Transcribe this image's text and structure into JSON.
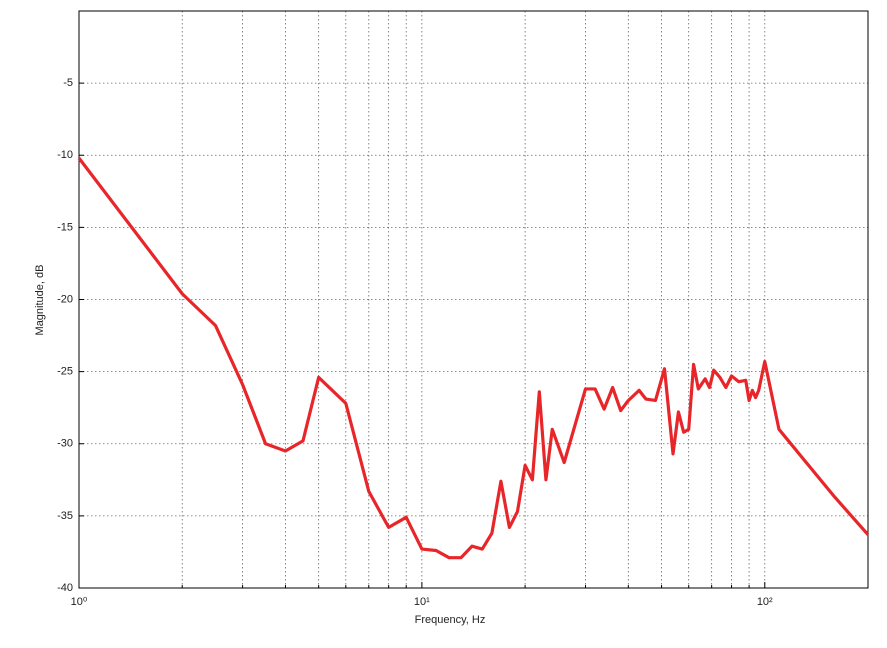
{
  "chart_data": {
    "type": "line",
    "xlabel": "Frequency, Hz",
    "ylabel": "Magnitude, dB",
    "x": [
      1,
      2,
      2.5,
      3,
      3.5,
      4,
      4.5,
      5,
      6,
      7,
      8,
      9,
      10,
      11,
      12,
      13,
      14,
      15,
      16,
      17,
      18,
      19,
      20,
      21,
      22,
      23,
      24,
      26,
      30,
      32,
      34,
      36,
      38,
      40,
      43,
      45,
      48,
      51,
      54,
      56,
      58,
      60,
      62,
      64,
      67,
      69,
      71,
      74,
      77,
      80,
      84,
      88,
      90,
      92,
      94,
      96,
      100,
      110,
      130,
      160,
      200
    ],
    "values": [
      -10.2,
      -19.6,
      -21.8,
      -25.9,
      -30.0,
      -30.5,
      -29.8,
      -25.4,
      -27.2,
      -33.3,
      -35.8,
      -35.1,
      -37.3,
      -37.4,
      -37.9,
      -37.9,
      -37.1,
      -37.3,
      -36.2,
      -32.6,
      -35.8,
      -34.7,
      -31.5,
      -32.5,
      -26.4,
      -32.5,
      -29.0,
      -31.3,
      -26.2,
      -26.2,
      -27.6,
      -26.1,
      -27.7,
      -27.0,
      -26.3,
      -26.9,
      -27.0,
      -24.8,
      -30.7,
      -27.8,
      -29.2,
      -29.0,
      -24.5,
      -26.2,
      -25.5,
      -26.1,
      -24.9,
      -25.4,
      -26.1,
      -25.3,
      -25.7,
      -25.6,
      -27.0,
      -26.3,
      -26.8,
      -26.3,
      -24.3,
      -29.0,
      -31.1,
      -33.7,
      -36.3
    ],
    "color": "#e8262a",
    "xscale": "log",
    "xlim": [
      1,
      200
    ],
    "xticks": [
      {
        "value": 1,
        "label": "10⁰"
      },
      {
        "value": 10,
        "label": "10¹"
      },
      {
        "value": 100,
        "label": "10²"
      }
    ],
    "xminor": [
      2,
      3,
      4,
      5,
      6,
      7,
      8,
      9,
      20,
      30,
      40,
      50,
      60,
      70,
      80,
      90
    ],
    "ylim": [
      -40,
      0
    ],
    "yticks": [
      -40,
      -35,
      -30,
      -25,
      -20,
      -15,
      -10,
      -5
    ],
    "grid": true
  }
}
